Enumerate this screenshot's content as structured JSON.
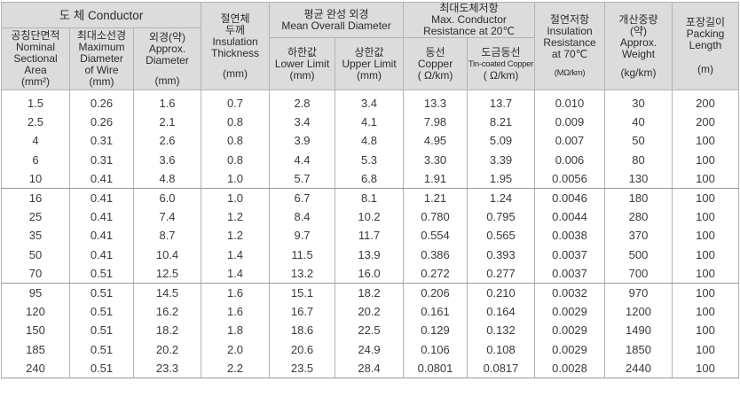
{
  "header": {
    "conductor": "도 체 Conductor",
    "nominal_area": [
      "공칭단면적",
      "Nominal",
      "Sectional",
      "Area",
      "(mm²)"
    ],
    "max_wire_dia": [
      "최대소선경",
      "Maximum",
      "Diameter",
      "of Wire",
      "(mm)"
    ],
    "approx_dia": [
      "외경(약)",
      "Approx.",
      "Diameter",
      "(mm)"
    ],
    "insulation": [
      "절연체",
      "두께",
      "Insulation",
      "Thickness",
      "(mm)"
    ],
    "mean_overall": [
      "평균 완성 외경",
      "Mean Overall Diameter"
    ],
    "lower_limit": [
      "하한값",
      "Lower Limit",
      "(mm)"
    ],
    "upper_limit": [
      "상한값",
      "Upper Limit",
      "(mm)"
    ],
    "max_resistance": [
      "최대도체저항",
      "Max. Conductor",
      "Resistance at 20℃"
    ],
    "copper": [
      "동선",
      "Copper",
      "( Ω/km)"
    ],
    "tin_copper": [
      "도금동선",
      "Tin-coated Copper",
      "( Ω/km)"
    ],
    "ins_resistance": [
      "절연저항",
      "Insulation",
      "Resistance",
      "at 70℃",
      "(MΩ/km)"
    ],
    "weight": [
      "개산중량",
      "(약)",
      "Approx.",
      "Weight",
      "(kg/km)"
    ],
    "packing": [
      "포장길이",
      "Packing",
      "Length",
      "(m)"
    ]
  },
  "rows": [
    [
      "1.5",
      "0.26",
      "1.6",
      "0.7",
      "2.8",
      "3.4",
      "13.3",
      "13.7",
      "0.010",
      "30",
      "200"
    ],
    [
      "2.5",
      "0.26",
      "2.1",
      "0.8",
      "3.4",
      "4.1",
      "7.98",
      "8.21",
      "0.009",
      "40",
      "200"
    ],
    [
      "4",
      "0.31",
      "2.6",
      "0.8",
      "3.9",
      "4.8",
      "4.95",
      "5.09",
      "0.007",
      "50",
      "100"
    ],
    [
      "6",
      "0.31",
      "3.6",
      "0.8",
      "4.4",
      "5.3",
      "3.30",
      "3.39",
      "0.006",
      "80",
      "100"
    ],
    [
      "10",
      "0.41",
      "4.8",
      "1.0",
      "5.7",
      "6.8",
      "1.91",
      "1.95",
      "0.0056",
      "130",
      "100"
    ],
    [
      "16",
      "0.41",
      "6.0",
      "1.0",
      "6.7",
      "8.1",
      "1.21",
      "1.24",
      "0.0046",
      "180",
      "100"
    ],
    [
      "25",
      "0.41",
      "7.4",
      "1.2",
      "8.4",
      "10.2",
      "0.780",
      "0.795",
      "0.0044",
      "280",
      "100"
    ],
    [
      "35",
      "0.41",
      "8.7",
      "1.2",
      "9.7",
      "11.7",
      "0.554",
      "0.565",
      "0.0038",
      "370",
      "100"
    ],
    [
      "50",
      "0.41",
      "10.4",
      "1.4",
      "11.5",
      "13.9",
      "0.386",
      "0.393",
      "0.0037",
      "500",
      "100"
    ],
    [
      "70",
      "0.51",
      "12.5",
      "1.4",
      "13.2",
      "16.0",
      "0.272",
      "0.277",
      "0.0037",
      "700",
      "100"
    ],
    [
      "95",
      "0.51",
      "14.5",
      "1.6",
      "15.1",
      "18.2",
      "0.206",
      "0.210",
      "0.0032",
      "970",
      "100"
    ],
    [
      "120",
      "0.51",
      "16.2",
      "1.6",
      "16.7",
      "20.2",
      "0.161",
      "0.164",
      "0.0029",
      "1200",
      "100"
    ],
    [
      "150",
      "0.51",
      "18.2",
      "1.8",
      "18.6",
      "22.5",
      "0.129",
      "0.132",
      "0.0029",
      "1490",
      "100"
    ],
    [
      "185",
      "0.51",
      "20.2",
      "2.0",
      "20.6",
      "24.9",
      "0.106",
      "0.108",
      "0.0029",
      "1850",
      "100"
    ],
    [
      "240",
      "0.51",
      "23.3",
      "2.2",
      "23.5",
      "28.4",
      "0.0801",
      "0.0817",
      "0.0028",
      "2440",
      "100"
    ]
  ]
}
